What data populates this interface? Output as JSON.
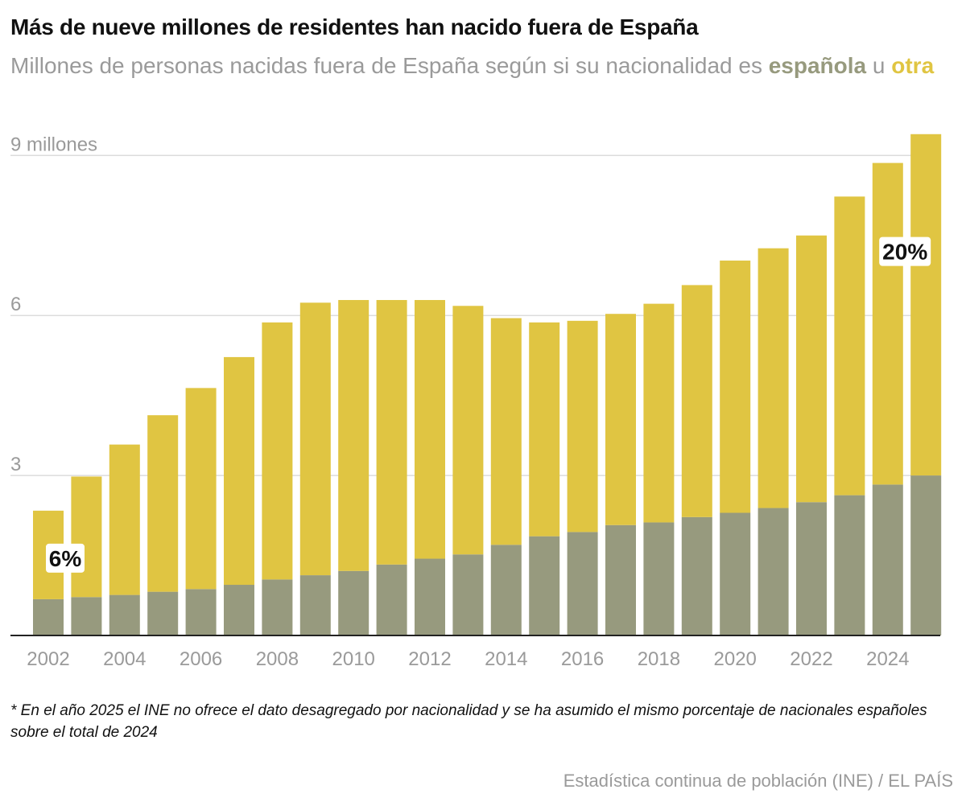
{
  "header": {
    "title": "Más de nueve millones de residentes han nacido fuera de España",
    "subtitle_prefix": "Millones de personas nacidas fuera de España según si su nacionalidad es ",
    "subtitle_espanola": "española",
    "subtitle_middle": " u ",
    "subtitle_otra": "otra"
  },
  "footer": {
    "note": "* En el año 2025 el INE no ofrece el dato desagregado por nacionalidad y se ha asumido el mismo porcentaje de nacionales españoles sobre el total de 2024",
    "source": "Estadística continua de población (INE) / EL PAÍS"
  },
  "colors": {
    "espanola": "#979a7e",
    "otra": "#e0c542",
    "grid": "#dcdcdc",
    "axis": "#222222",
    "tick_text": "#9a9a9a"
  },
  "chart_data": {
    "type": "bar",
    "stacked": true,
    "x": [
      2002,
      2003,
      2004,
      2005,
      2006,
      2007,
      2008,
      2009,
      2010,
      2011,
      2012,
      2013,
      2014,
      2015,
      2016,
      2017,
      2018,
      2019,
      2020,
      2021,
      2022,
      2023,
      2024,
      2025
    ],
    "series": [
      {
        "name": "española",
        "color": "#979a7e",
        "values": [
          0.68,
          0.72,
          0.76,
          0.82,
          0.87,
          0.95,
          1.05,
          1.13,
          1.21,
          1.33,
          1.44,
          1.52,
          1.7,
          1.86,
          1.94,
          2.07,
          2.12,
          2.22,
          2.3,
          2.39,
          2.5,
          2.63,
          2.83,
          3.0
        ]
      },
      {
        "name": "otra",
        "color": "#e0c542",
        "values": [
          1.66,
          2.26,
          2.82,
          3.31,
          3.77,
          4.27,
          4.82,
          5.11,
          5.08,
          4.96,
          4.85,
          4.66,
          4.25,
          4.01,
          3.96,
          3.96,
          4.1,
          4.35,
          4.73,
          4.87,
          5.0,
          5.6,
          6.03,
          6.4
        ]
      }
    ],
    "x_tick_labels": [
      "2002",
      "2004",
      "2006",
      "2008",
      "2010",
      "2012",
      "2014",
      "2016",
      "2018",
      "2020",
      "2022",
      "2024"
    ],
    "y_tick_labels": [
      "3",
      "6",
      "9 millones"
    ],
    "y_ticks": [
      3,
      6,
      9
    ],
    "ylim": [
      0,
      9.8
    ],
    "grid": true,
    "annotations": [
      {
        "year": 2002,
        "text": "6%"
      },
      {
        "year": 2025,
        "text": "20%"
      }
    ]
  }
}
